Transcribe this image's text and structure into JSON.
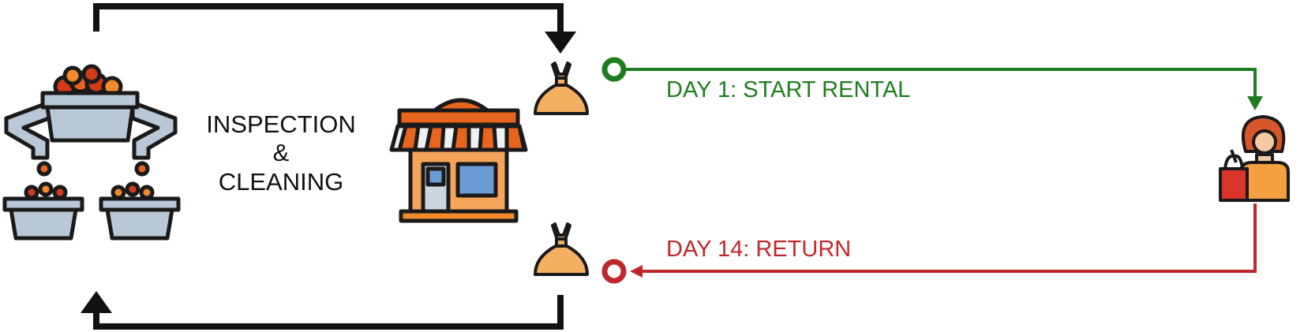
{
  "process_label": [
    "INSPECTION",
    "&",
    "CLEANING"
  ],
  "rental": {
    "label": "DAY 1: START RENTAL",
    "color": "#1e7d1e"
  },
  "return": {
    "label": "DAY 14: RETURN",
    "color": "#c0272d"
  },
  "cycle_color": "#111111",
  "icons": [
    "sorting-machine-icon",
    "store-icon",
    "dress-icon",
    "dress-icon",
    "shopper-icon"
  ]
}
